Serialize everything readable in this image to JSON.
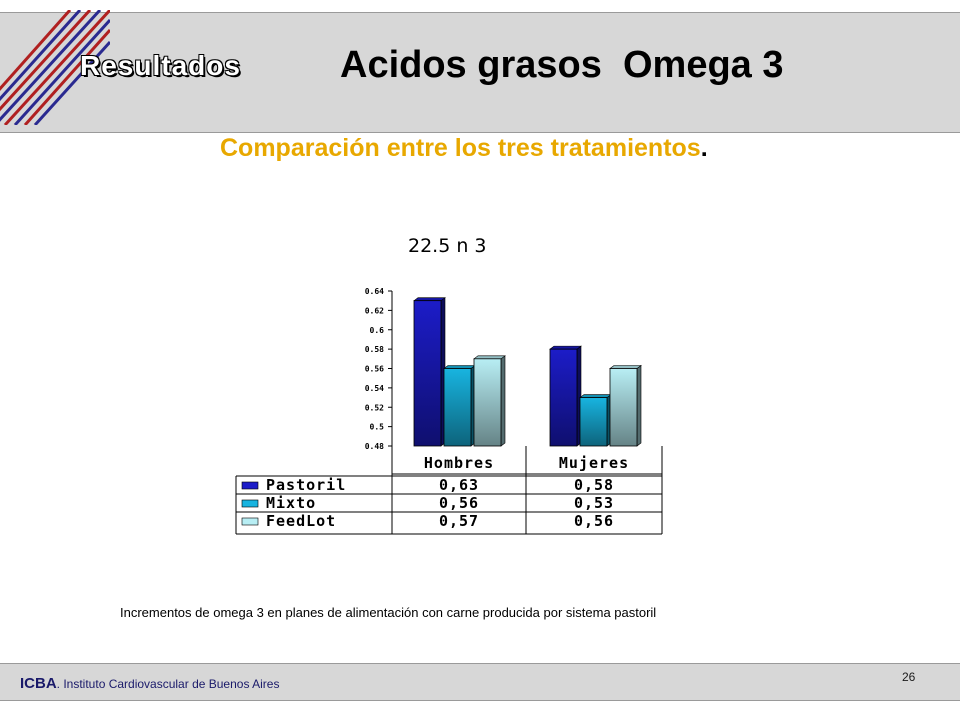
{
  "header": {
    "section_label": "Resultados",
    "title": "Acidos grasos  Omega 3",
    "subtitle": "Comparación entre los tres tratamientos",
    "subtitle_end": "."
  },
  "chart_caption": "22.5 n 3",
  "chart_data": {
    "type": "bar",
    "categories": [
      "Hombres",
      "Mujeres"
    ],
    "series": [
      {
        "name": "Pastoril",
        "values": [
          0.63,
          0.58
        ],
        "labels": [
          "0,63",
          "0,58"
        ],
        "color": "#1c1cc8"
      },
      {
        "name": "Mixto",
        "values": [
          0.56,
          0.53
        ],
        "labels": [
          "0,56",
          "0,53"
        ],
        "color": "#18b4e0"
      },
      {
        "name": "FeedLot",
        "values": [
          0.57,
          0.56
        ],
        "labels": [
          "0,57",
          "0,56"
        ],
        "color": "#b8eef4"
      }
    ],
    "ylim": [
      0.48,
      0.64
    ],
    "yticks": [
      0.48,
      0.5,
      0.52,
      0.54,
      0.56,
      0.58,
      0.6,
      0.62,
      0.64
    ],
    "ytick_labels": [
      "0.48",
      "0.5",
      "0.52",
      "0.54",
      "0.56",
      "0.58",
      "0.6",
      "0.62",
      "0.64"
    ],
    "legend": "data-table",
    "bar_style": "3d"
  },
  "footnote": "Incrementos de omega 3 en planes de alimentación con carne producida por sistema pastoril",
  "footer": {
    "org_abbr": "ICBA",
    "org_name": ". Instituto Cardiovascular de Buenos Aires",
    "page_number": "26"
  }
}
